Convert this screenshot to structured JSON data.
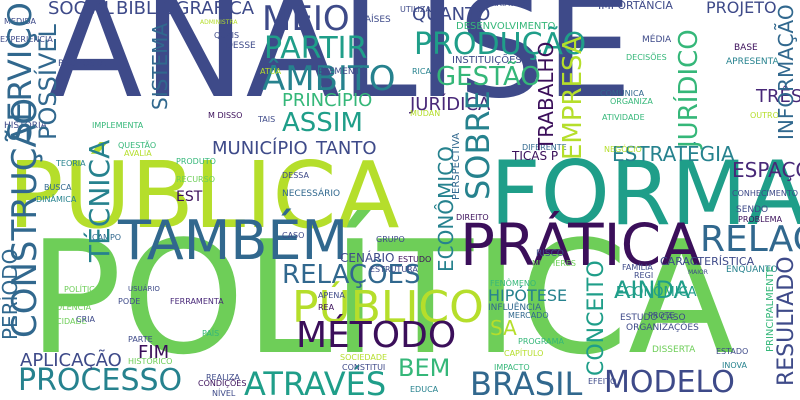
{
  "palette": {
    "dark_purple": "#3b0f5a",
    "purple": "#482878",
    "indigo": "#3e4a89",
    "blue": "#31688e",
    "teal": "#26828e",
    "teal_green": "#1f9e89",
    "green": "#35b779",
    "light_green": "#6ece58",
    "yellow_green": "#b5de2b",
    "yellow": "#fde725"
  },
  "words": [
    {
      "text": "ANÁLISE",
      "color": "#3e4a89"
    },
    {
      "text": "POLÍTICA",
      "color": "#6ece58"
    },
    {
      "text": "PÚBLICA",
      "color": "#b5de2b"
    },
    {
      "text": "FORMAÇÃO",
      "color": "#1f9e89"
    },
    {
      "text": "TAMBÉM",
      "color": "#31688e"
    },
    {
      "text": "PRÁTICA",
      "color": "#3b0f5a"
    },
    {
      "text": "PÚBLICO",
      "color": "#b5de2b"
    },
    {
      "text": "MÉTODO",
      "color": "#3b0f5a"
    },
    {
      "text": "RELAÇÃO",
      "color": "#31688e"
    },
    {
      "text": "PROCESSO",
      "color": "#26828e"
    },
    {
      "text": "ATRAVÉS",
      "color": "#1f9e89"
    },
    {
      "text": "BRASIL",
      "color": "#31688e"
    },
    {
      "text": "MODELO",
      "color": "#3e4a89"
    },
    {
      "text": "MEIO",
      "color": "#3e4a89"
    },
    {
      "text": "PARTIR",
      "color": "#1f9e89"
    },
    {
      "text": "PRODUÇÃO",
      "color": "#1f9e89"
    },
    {
      "text": "GESTÃO",
      "color": "#35b779"
    },
    {
      "text": "ÂMBITO",
      "color": "#26828e"
    },
    {
      "text": "ASSIM",
      "color": "#1f9e89"
    },
    {
      "text": "PRINCÍPIO",
      "color": "#35b779"
    },
    {
      "text": "JURÍDICA",
      "color": "#482878"
    },
    {
      "text": "MUNICÍPIO",
      "color": "#3e4a89"
    },
    {
      "text": "TANTO",
      "color": "#3e4a89"
    },
    {
      "text": "ESTRATÉGIA",
      "color": "#26828e"
    },
    {
      "text": "ESPAÇO",
      "color": "#482878"
    },
    {
      "text": "RELAÇÕES",
      "color": "#31688e"
    },
    {
      "text": "AINDA",
      "color": "#1f9e89"
    },
    {
      "text": "APLICAÇÃO",
      "color": "#3e4a89"
    },
    {
      "text": "FIM",
      "color": "#3b0f5a"
    },
    {
      "text": "SOCIAL",
      "color": "#3e4a89"
    },
    {
      "text": "BIBLIOGRÁFICA",
      "color": "#3e4a89"
    },
    {
      "text": "QUANTO",
      "color": "#3e4a89"
    },
    {
      "text": "PROJETO",
      "color": "#3e4a89"
    },
    {
      "text": "INFORMAÇÃO",
      "color": "#31688e"
    },
    {
      "text": "SISTEMA",
      "color": "#31688e"
    },
    {
      "text": "SERVIÇO",
      "color": "#31688e"
    },
    {
      "text": "POSSÍVEL",
      "color": "#31688e"
    },
    {
      "text": "TÉCNICA",
      "color": "#26828e"
    },
    {
      "text": "CONSTRUÇÃO",
      "color": "#31688e"
    },
    {
      "text": "PERÍODO",
      "color": "#31688e"
    },
    {
      "text": "EMPRESA",
      "color": "#b5de2b"
    },
    {
      "text": "TRABALHO",
      "color": "#3b0f5a"
    },
    {
      "text": "SOBRE",
      "color": "#26828e"
    },
    {
      "text": "ECONÔMICO",
      "color": "#26828e"
    },
    {
      "text": "CONCEITO",
      "color": "#1f9e89"
    },
    {
      "text": "RESULTADO",
      "color": "#3e4a89"
    },
    {
      "text": "JURÍDICO",
      "color": "#35b779"
    },
    {
      "text": "PERSPECTIVA",
      "color": "#31688e"
    },
    {
      "text": "TRÊS",
      "color": "#482878"
    },
    {
      "text": "EST",
      "color": "#3b0f5a"
    },
    {
      "text": "SA",
      "color": "#b5de2b"
    },
    {
      "text": "BEM",
      "color": "#35b779"
    },
    {
      "text": "HIPÓTESE",
      "color": "#26828e"
    },
    {
      "text": "ECONÔMICA",
      "color": "#1f9e89"
    },
    {
      "text": "CENÁRIO",
      "color": "#3e4a89"
    },
    {
      "text": "CARACTERÍSTICA",
      "color": "#3e4a89"
    },
    {
      "text": "TICAS P",
      "color": "#3b0f5a"
    },
    {
      "text": "DIFERENTE",
      "color": "#31688e"
    },
    {
      "text": "QUESTÃO",
      "color": "#35b779"
    },
    {
      "text": "VIOLÊNCIA",
      "color": "#6ece58"
    },
    {
      "text": "DINÂMICA",
      "color": "#26828e"
    },
    {
      "text": "TEORIA",
      "color": "#26828e"
    },
    {
      "text": "HISTÓRIA",
      "color": "#3e4a89"
    },
    {
      "text": "CONTEXTO",
      "color": "#3e4a89"
    },
    {
      "text": "MEDIDA",
      "color": "#3e4a89"
    },
    {
      "text": "EXPERIÊNCIA",
      "color": "#3e4a89"
    },
    {
      "text": "PROPOSTA",
      "color": "#3e4a89"
    },
    {
      "text": "IMPLEMENTA",
      "color": "#35b779"
    },
    {
      "text": "IMPORTÂNCIA",
      "color": "#3e4a89"
    },
    {
      "text": "DESENVOLVIMENTO",
      "color": "#35b779"
    },
    {
      "text": "VARIÁVEIS",
      "color": "#3e4a89"
    },
    {
      "text": "INSTITUIÇÕES",
      "color": "#3e4a89"
    },
    {
      "text": "UTILIZA",
      "color": "#3e4a89"
    },
    {
      "text": "PAÍSES",
      "color": "#3e4a89"
    },
    {
      "text": "MÉDIA",
      "color": "#3e4a89"
    },
    {
      "text": "APRESENTA",
      "color": "#26828e"
    },
    {
      "text": "BASE",
      "color": "#3b0f5a"
    },
    {
      "text": "DECISÕES",
      "color": "#35b779"
    },
    {
      "text": "ORGANIZA",
      "color": "#35b779"
    },
    {
      "text": "COMUNICA",
      "color": "#31688e"
    },
    {
      "text": "ATIVIDADE",
      "color": "#35b779"
    },
    {
      "text": "CONHECIMENTO",
      "color": "#3e4a89"
    },
    {
      "text": "SENDO",
      "color": "#3e4a89"
    },
    {
      "text": "PROBLEMA",
      "color": "#3b0f5a"
    },
    {
      "text": "ENQUANTO",
      "color": "#26828e"
    },
    {
      "text": "PRINCIPALMENTE",
      "color": "#35b779"
    },
    {
      "text": "ESTUDO CASO",
      "color": "#3e4a89"
    },
    {
      "text": "ORGANIZAÇÕES",
      "color": "#3e4a89"
    },
    {
      "text": "PROTE",
      "color": "#3e4a89"
    },
    {
      "text": "DISSERTA",
      "color": "#6ece58"
    },
    {
      "text": "ESTADO",
      "color": "#3e4a89"
    },
    {
      "text": "INOVA",
      "color": "#26828e"
    },
    {
      "text": "EFEITO",
      "color": "#3e4a89"
    },
    {
      "text": "FAMÍLIA",
      "color": "#3e4a89"
    },
    {
      "text": "MERCADO",
      "color": "#31688e"
    },
    {
      "text": "PROGRAMA",
      "color": "#35b779"
    },
    {
      "text": "IMPACTO",
      "color": "#35b779"
    },
    {
      "text": "FENÔMENO",
      "color": "#35b779"
    },
    {
      "text": "INFLUÊNCIA",
      "color": "#31688e"
    },
    {
      "text": "RISCO",
      "color": "#3e4a89"
    },
    {
      "text": "MULHERES",
      "color": "#6ece58"
    },
    {
      "text": "CAPÍTULO",
      "color": "#b5de2b"
    },
    {
      "text": "SOCIEDADE",
      "color": "#b5de2b"
    },
    {
      "text": "CONSTITUI",
      "color": "#3e4a89"
    },
    {
      "text": "EDUCA",
      "color": "#26828e"
    },
    {
      "text": "FERRAMENTA",
      "color": "#482878"
    },
    {
      "text": "REALIZA",
      "color": "#3e4a89"
    },
    {
      "text": "CONDIÇÕES",
      "color": "#3b0f5a"
    },
    {
      "text": "NÍVEL",
      "color": "#3e4a89"
    },
    {
      "text": "PARTE",
      "color": "#3e4a89"
    },
    {
      "text": "HISTÓRICO",
      "color": "#6ece58"
    },
    {
      "text": "PODE",
      "color": "#3e4a89"
    },
    {
      "text": "CIDADE",
      "color": "#6ece58"
    },
    {
      "text": "TEMPO",
      "color": "#6ece58"
    },
    {
      "text": "POLÍTICO",
      "color": "#6ece58"
    },
    {
      "text": "CRIA",
      "color": "#3e4a89"
    },
    {
      "text": "CAMPO",
      "color": "#31688e"
    },
    {
      "text": "BUSCA",
      "color": "#31688e"
    },
    {
      "text": "RECURSO",
      "color": "#6ece58"
    },
    {
      "text": "AVALIA",
      "color": "#b5de2b"
    },
    {
      "text": "PRODUTO",
      "color": "#35b779"
    },
    {
      "text": "DESSA",
      "color": "#3e4a89"
    },
    {
      "text": "DIREITO",
      "color": "#3b0f5a"
    },
    {
      "text": "GRUPO",
      "color": "#3e4a89"
    },
    {
      "text": "ESTUDO",
      "color": "#3b0f5a"
    },
    {
      "text": "ESTRUTURA",
      "color": "#3e4a89"
    },
    {
      "text": "CASO",
      "color": "#3e4a89"
    },
    {
      "text": "APENA",
      "color": "#3e4a89"
    },
    {
      "text": "REA",
      "color": "#3b0f5a"
    },
    {
      "text": "NECESSÁRIO",
      "color": "#31688e"
    },
    {
      "text": "NEGÓCIO",
      "color": "#b5de2b"
    },
    {
      "text": "MUDAN",
      "color": "#b5de2b"
    },
    {
      "text": "ELEMENTO",
      "color": "#3e4a89"
    },
    {
      "text": "M DISSO",
      "color": "#3b0f5a"
    },
    {
      "text": "QUAIS",
      "color": "#3e4a89"
    },
    {
      "text": "DESSE",
      "color": "#3e4a89"
    },
    {
      "text": "PAÍS",
      "color": "#35b779"
    },
    {
      "text": "TAIS",
      "color": "#3e4a89"
    },
    {
      "text": "USUÁRIO",
      "color": "#3e4a89"
    },
    {
      "text": "PORTANTO",
      "color": "#3e4a89"
    },
    {
      "text": "MAIOR",
      "color": "#3e4a89"
    },
    {
      "text": "REGI",
      "color": "#3e4a89"
    },
    {
      "text": "ATUA",
      "color": "#b5de2b"
    },
    {
      "text": "OUTRO",
      "color": "#b5de2b"
    },
    {
      "text": "RICA",
      "color": "#26828e"
    },
    {
      "text": "ADMINISTRA",
      "color": "#b5de2b"
    }
  ]
}
